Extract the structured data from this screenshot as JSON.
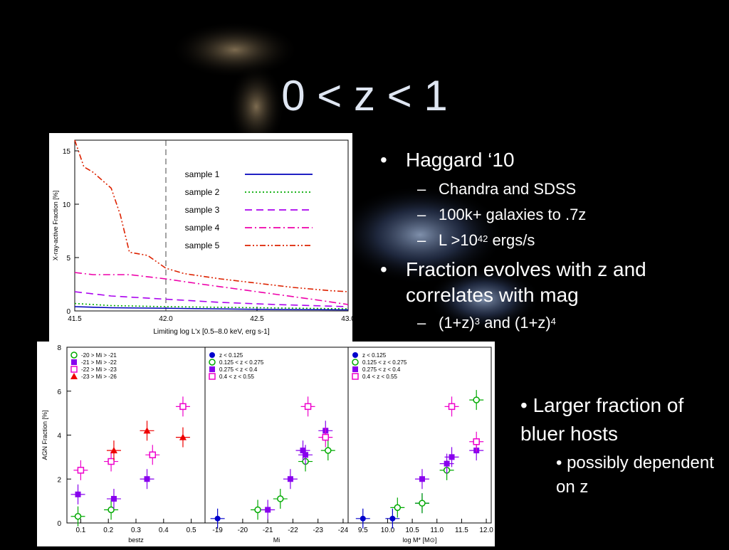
{
  "slide": {
    "title": "0 < z < 1",
    "bullets": [
      {
        "text": "Haggard ‘10",
        "subs": [
          {
            "text": "Chandra and SDSS"
          },
          {
            "text": "100k+ galaxies to .7z"
          },
          {
            "pre": "L >10",
            "sup": "42",
            "post": " ergs/s"
          }
        ]
      },
      {
        "text": "Fraction evolves with z and correlates with mag",
        "subs": [
          {
            "pre": "(1+z)",
            "sup": "3",
            "mid": " and (1+z)",
            "sup2": "4"
          }
        ]
      }
    ],
    "side": {
      "main": "Larger fraction of bluer hosts",
      "sub": "possibly dependent on z"
    },
    "glyphs": {
      "bullet": "•",
      "dash": "–"
    }
  },
  "chart_data": [
    {
      "type": "line",
      "xlabel": "Limiting log L'x [0.5–8.0 keV, erg s-1]",
      "ylabel": "X-ray-active Fraction [%]",
      "xlim": [
        41.5,
        43.0
      ],
      "ylim": [
        0,
        16
      ],
      "x_ticks": [
        "41.5",
        "42.0",
        "42.5",
        "43.0"
      ],
      "y_ticks": [
        "0",
        "5",
        "10",
        "15"
      ],
      "vline": 42.0,
      "legend": "top-right",
      "series": [
        {
          "name": "sample 1",
          "color": "#0000bb",
          "dash": "solid",
          "x": [
            41.5,
            41.7,
            42.0,
            42.5,
            43.0
          ],
          "values": [
            0.4,
            0.3,
            0.25,
            0.15,
            0.1
          ]
        },
        {
          "name": "sample 2",
          "color": "#00aa00",
          "dash": "dot",
          "x": [
            41.5,
            41.7,
            42.0,
            42.5,
            43.0
          ],
          "values": [
            0.7,
            0.5,
            0.4,
            0.3,
            0.2
          ]
        },
        {
          "name": "sample 3",
          "color": "#aa00ee",
          "dash": "dash",
          "x": [
            41.5,
            41.7,
            42.0,
            42.3,
            42.6,
            43.0
          ],
          "values": [
            1.8,
            1.4,
            1.1,
            0.8,
            0.6,
            0.4
          ]
        },
        {
          "name": "sample 4",
          "color": "#ee00aa",
          "dash": "dashdot",
          "x": [
            41.5,
            41.6,
            41.8,
            42.0,
            42.2,
            42.5,
            42.8,
            43.0
          ],
          "values": [
            3.6,
            3.4,
            3.4,
            3.0,
            2.5,
            1.8,
            1.1,
            0.6
          ]
        },
        {
          "name": "sample 5",
          "color": "#dd2200",
          "dash": "dashdotdot",
          "x": [
            41.5,
            41.55,
            41.6,
            41.7,
            41.75,
            41.8,
            41.9,
            42.0,
            42.1,
            42.3,
            42.5,
            42.7,
            42.9,
            43.0
          ],
          "values": [
            16.0,
            13.5,
            13.0,
            11.5,
            9.0,
            5.5,
            5.2,
            4.0,
            3.5,
            3.0,
            2.6,
            2.2,
            1.9,
            1.8
          ]
        }
      ]
    },
    {
      "type": "scatter",
      "xlabel": "bestz",
      "ylabel": "AGN Fraction [%]",
      "xlim": [
        0.05,
        0.55
      ],
      "ylim": [
        0,
        8
      ],
      "x_ticks": [
        "0.1",
        "0.2",
        "0.3",
        "0.4",
        "0.5"
      ],
      "y_ticks": [
        "0",
        "2",
        "4",
        "6",
        "8"
      ],
      "legend": "top-left",
      "series": [
        {
          "name": "-20 > Mi > -21",
          "color": "#00aa00",
          "marker": "circle-open",
          "x": [
            0.09,
            0.21
          ],
          "values": [
            0.3,
            0.6
          ]
        },
        {
          "name": "-21 > Mi > -22",
          "color": "#8800ee",
          "marker": "square-filled",
          "x": [
            0.09,
            0.22,
            0.34
          ],
          "values": [
            1.3,
            1.1,
            2.0
          ]
        },
        {
          "name": "-22 > Mi > -23",
          "color": "#ee00cc",
          "marker": "square-open",
          "x": [
            0.1,
            0.21,
            0.36,
            0.47
          ],
          "values": [
            2.4,
            2.8,
            3.1,
            5.3
          ]
        },
        {
          "name": "-23 > Mi > -26",
          "color": "#ee0000",
          "marker": "triangle-filled",
          "x": [
            0.22,
            0.34,
            0.47
          ],
          "values": [
            3.3,
            4.2,
            3.9
          ]
        }
      ]
    },
    {
      "type": "scatter",
      "xlabel": "Mi",
      "ylabel": "",
      "xlim": [
        -18.5,
        -24.2
      ],
      "ylim": [
        0,
        8
      ],
      "x_ticks": [
        "-19",
        "-20",
        "-21",
        "-22",
        "-23",
        "-24"
      ],
      "legend": "top-left",
      "series": [
        {
          "name": "z < 0.125",
          "color": "#0000cc",
          "marker": "circle-filled",
          "x": [
            -19.0
          ],
          "values": [
            0.2
          ]
        },
        {
          "name": "0.125 < z < 0.275",
          "color": "#00aa00",
          "marker": "circle-open",
          "x": [
            -20.6,
            -21.5,
            -22.5,
            -23.4
          ],
          "values": [
            0.6,
            1.1,
            2.8,
            3.3
          ]
        },
        {
          "name": "0.275 < z < 0.4",
          "color": "#8800ee",
          "marker": "square-filled",
          "x": [
            -21.0,
            -21.9,
            -22.4,
            -22.5,
            -23.3
          ],
          "values": [
            0.6,
            2.0,
            3.3,
            3.1,
            4.2
          ]
        },
        {
          "name": "0.4 < z < 0.55",
          "color": "#ee00cc",
          "marker": "square-open",
          "x": [
            -22.6,
            -23.3
          ],
          "values": [
            5.3,
            3.9
          ]
        }
      ]
    },
    {
      "type": "scatter",
      "xlabel": "log M* [M⊙]",
      "ylabel": "",
      "xlim": [
        9.2,
        12.1
      ],
      "ylim": [
        0,
        8
      ],
      "x_ticks": [
        "9.5",
        "10.0",
        "10.5",
        "11.0",
        "11.5",
        "12.0"
      ],
      "legend": "top-left",
      "series": [
        {
          "name": "z < 0.125",
          "color": "#0000cc",
          "marker": "circle-filled",
          "x": [
            9.5,
            10.1,
            10.7
          ],
          "values": [
            0.2,
            0.2,
            0.9
          ]
        },
        {
          "name": "0.125 < z < 0.275",
          "color": "#00aa00",
          "marker": "circle-open",
          "x": [
            10.2,
            10.7,
            11.2,
            11.8
          ],
          "values": [
            0.7,
            0.9,
            2.4,
            5.6
          ]
        },
        {
          "name": "0.275 < z < 0.4",
          "color": "#8800ee",
          "marker": "square-filled",
          "x": [
            10.7,
            11.2,
            11.3,
            11.8
          ],
          "values": [
            2.0,
            2.7,
            3.0,
            3.3
          ]
        },
        {
          "name": "0.4 < z < 0.55",
          "color": "#ee00cc",
          "marker": "square-open",
          "x": [
            11.3,
            11.8
          ],
          "values": [
            5.3,
            3.7
          ]
        }
      ]
    }
  ]
}
